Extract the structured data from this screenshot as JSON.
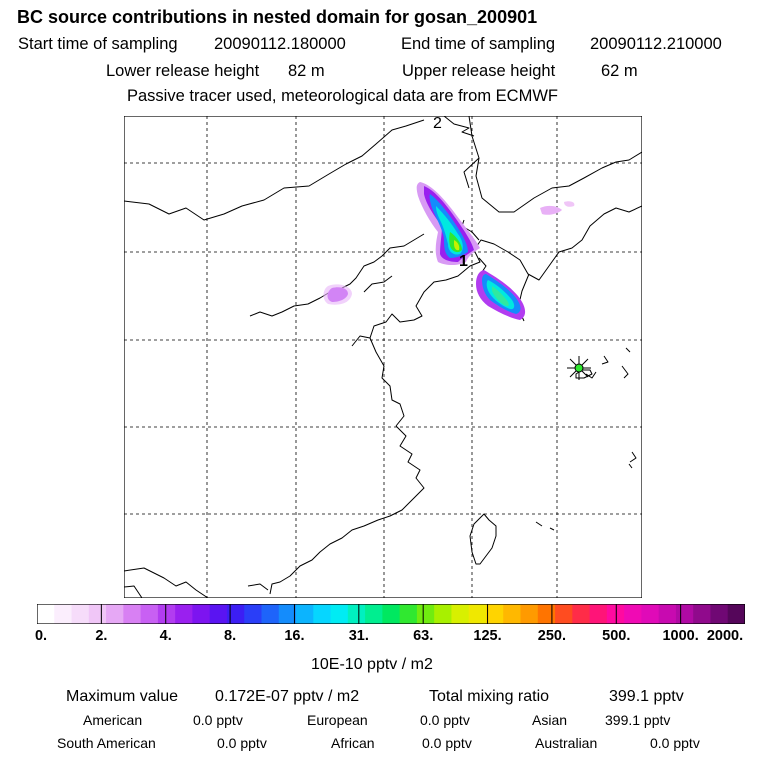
{
  "title": "BC  source contributions in nested domain for gosan_200901",
  "sampling": {
    "start_label": "Start time of sampling",
    "start_value": "20090112.180000",
    "end_label": "End time of sampling",
    "end_value": "20090112.210000"
  },
  "release": {
    "lower_label": "Lower release height",
    "lower_value": "82 m",
    "upper_label": "Upper release height",
    "upper_value": "62 m"
  },
  "note": "Passive tracer used, meteorological data are from ECMWF",
  "map": {
    "marker_label_top": "2",
    "marker_label_source": "1",
    "receptor_marker": "star-receptor"
  },
  "colorbar": {
    "ticks": [
      "0.",
      "2.",
      "4.",
      "8.",
      "16.",
      "31.",
      "63.",
      "125.",
      "250.",
      "500.",
      "1000.",
      "2000."
    ],
    "unit": "10E-10 pptv / m2",
    "colors": [
      "#ffffff",
      "#fbeefd",
      "#f6dcfa",
      "#f0c6f7",
      "#e6a8f5",
      "#d880f3",
      "#c860f3",
      "#b23cf0",
      "#9a20ef",
      "#7d14f0",
      "#5a14f2",
      "#3c1ef4",
      "#2a3ef8",
      "#1e64fa",
      "#148cfc",
      "#0cb4fe",
      "#06d6ff",
      "#00ecf4",
      "#00f0c0",
      "#00ee90",
      "#00e860",
      "#30e830",
      "#70ec10",
      "#a8f000",
      "#d8f000",
      "#f0e800",
      "#ffd400",
      "#ffb800",
      "#ff9a00",
      "#ff7400",
      "#ff4c20",
      "#ff2c48",
      "#ff1478",
      "#ff0aa0",
      "#f00ab4",
      "#e00ab8",
      "#c80ab0",
      "#b00aa4",
      "#900a8c",
      "#700874",
      "#55065a"
    ]
  },
  "stats": {
    "max_label": "Maximum value",
    "max_value": "0.172E-07 pptv / m2",
    "total_label": "Total mixing ratio",
    "total_value": "399.1 pptv",
    "regions": [
      {
        "name": "American",
        "value": "0.0 pptv"
      },
      {
        "name": "European",
        "value": "0.0 pptv"
      },
      {
        "name": "Asian",
        "value": "399.1 pptv"
      },
      {
        "name": "South American",
        "value": "0.0 pptv"
      },
      {
        "name": "African",
        "value": "0.0 pptv"
      },
      {
        "name": "Australian",
        "value": "0.0 pptv"
      }
    ]
  }
}
